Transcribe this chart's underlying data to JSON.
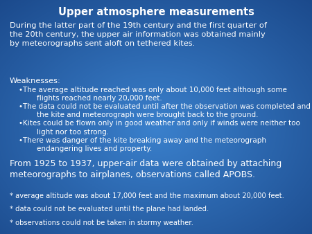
{
  "title": "Upper atmosphere measurements",
  "bg_color_topleft": "#0d3a7a",
  "bg_color_center": "#3a7ec8",
  "bg_color_bottom": "#1a5aaa",
  "text_color": "#ffffff",
  "title_fontsize": 10.5,
  "body_fontsize": 8.2,
  "bullet_fontsize": 7.5,
  "footer_fontsize": 7.2,
  "paragraph1": "During the latter part of the 19th century and the first quarter of\nthe 20th century, the upper air information was obtained mainly\nby meteorographs sent aloft on tethered kites.",
  "weaknesses_label": "Weaknesses:",
  "bullets": [
    "•The average altitude reached was only about 10,000 feet although some\n        flights reached nearly 20,000 feet.",
    "•The data could not be evaluated until after the observation was completed and\n        the kite and meteorograph were brought back to the ground.",
    "•Kites could be flown only in good weather and only if winds were neither too\n        light nor too strong.",
    "•There was danger of the kite breaking away and the meteorograph\n        endangering lives and property."
  ],
  "paragraph2": "From 1925 to 1937, upper-air data were obtained by attaching\nmeteorographs to airplanes, observations called APOBS.",
  "footer_lines": [
    "* average altitude was about 17,000 feet and the maximum about 20,000 feet.",
    "* data could not be evaluated until the plane had landed.",
    "* observations could not be taken in stormy weather."
  ]
}
